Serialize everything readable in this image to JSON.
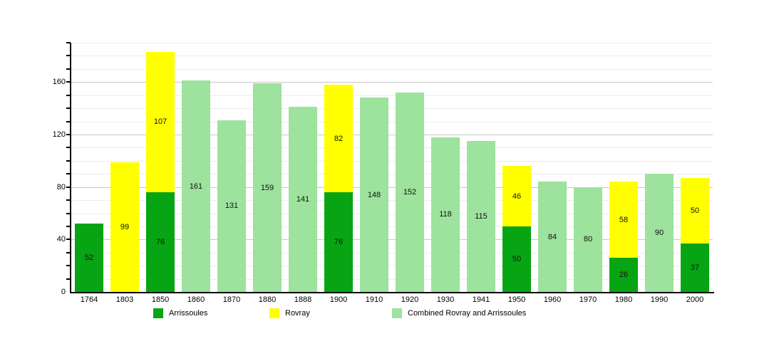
{
  "chart_data": {
    "type": "bar",
    "stacked": true,
    "categories": [
      "1764",
      "1803",
      "1850",
      "1860",
      "1870",
      "1880",
      "1888",
      "1900",
      "1910",
      "1920",
      "1930",
      "1941",
      "1950",
      "1960",
      "1970",
      "1980",
      "1990",
      "2000"
    ],
    "series": [
      {
        "name": "Arrissoules",
        "color": "#07a513",
        "values": [
          52,
          null,
          76,
          null,
          null,
          null,
          null,
          76,
          null,
          null,
          null,
          null,
          50,
          null,
          null,
          26,
          null,
          37
        ]
      },
      {
        "name": "Rovray",
        "color": "#ffff00",
        "values": [
          null,
          99,
          107,
          null,
          null,
          null,
          null,
          82,
          null,
          null,
          null,
          null,
          46,
          null,
          null,
          58,
          null,
          50
        ]
      },
      {
        "name": "Combined Rovray and Arrissoules",
        "color": "#9de29d",
        "values": [
          null,
          null,
          null,
          161,
          131,
          159,
          141,
          null,
          148,
          152,
          118,
          115,
          null,
          84,
          80,
          null,
          90,
          null
        ]
      }
    ],
    "bar_value_labels": true,
    "xlabel": "",
    "ylabel": "",
    "ylim": [
      0,
      190
    ],
    "yticks": [
      0,
      40,
      80,
      120,
      160
    ],
    "minor_tick_step": 10,
    "major_grid_step": 40,
    "grid": "horizontal",
    "legend_position": "bottom",
    "colors": {
      "axis": "#000000",
      "major_grid": "#c8c8c8",
      "minor_grid": "#ececec",
      "background": "#ffffff",
      "label_text": "#000000"
    }
  }
}
